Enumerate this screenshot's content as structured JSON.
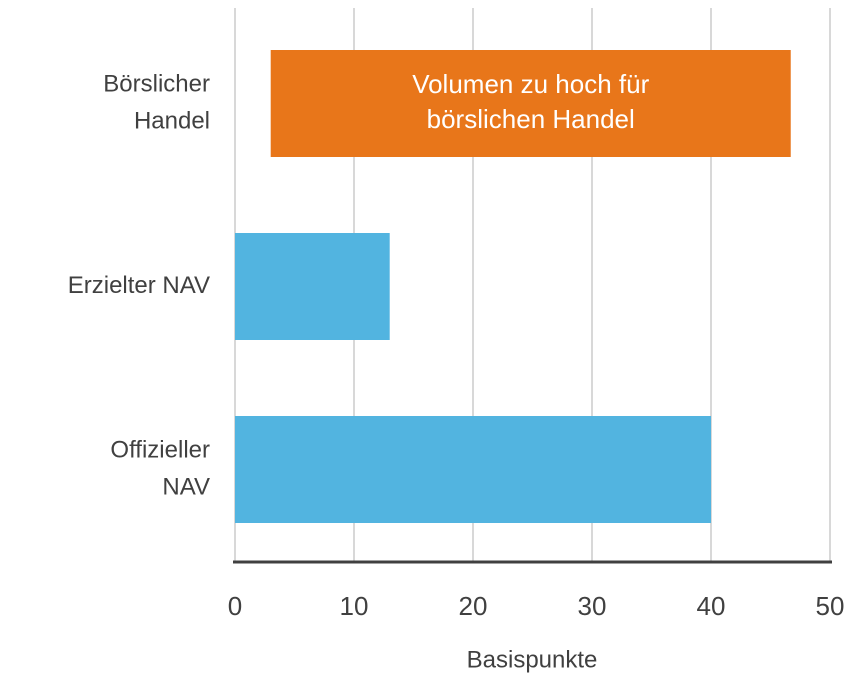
{
  "chart_data": {
    "type": "bar",
    "orientation": "horizontal",
    "categories": [
      [
        "Börslicher",
        "Handel"
      ],
      [
        "Erzielter NAV"
      ],
      [
        "Offizieller",
        "NAV"
      ]
    ],
    "starts": [
      3,
      null,
      null
    ],
    "values": [
      46.7,
      13,
      40
    ],
    "colors": [
      "#e8761a",
      "#52b4e0",
      "#52b4e0"
    ],
    "annotation": [
      "Volumen zu hoch für",
      "börslichen Handel"
    ],
    "xlabel": "Basispunkte",
    "xlim": [
      0,
      50
    ],
    "xticks": [
      0,
      10,
      20,
      30,
      40,
      50
    ],
    "grid": true
  }
}
